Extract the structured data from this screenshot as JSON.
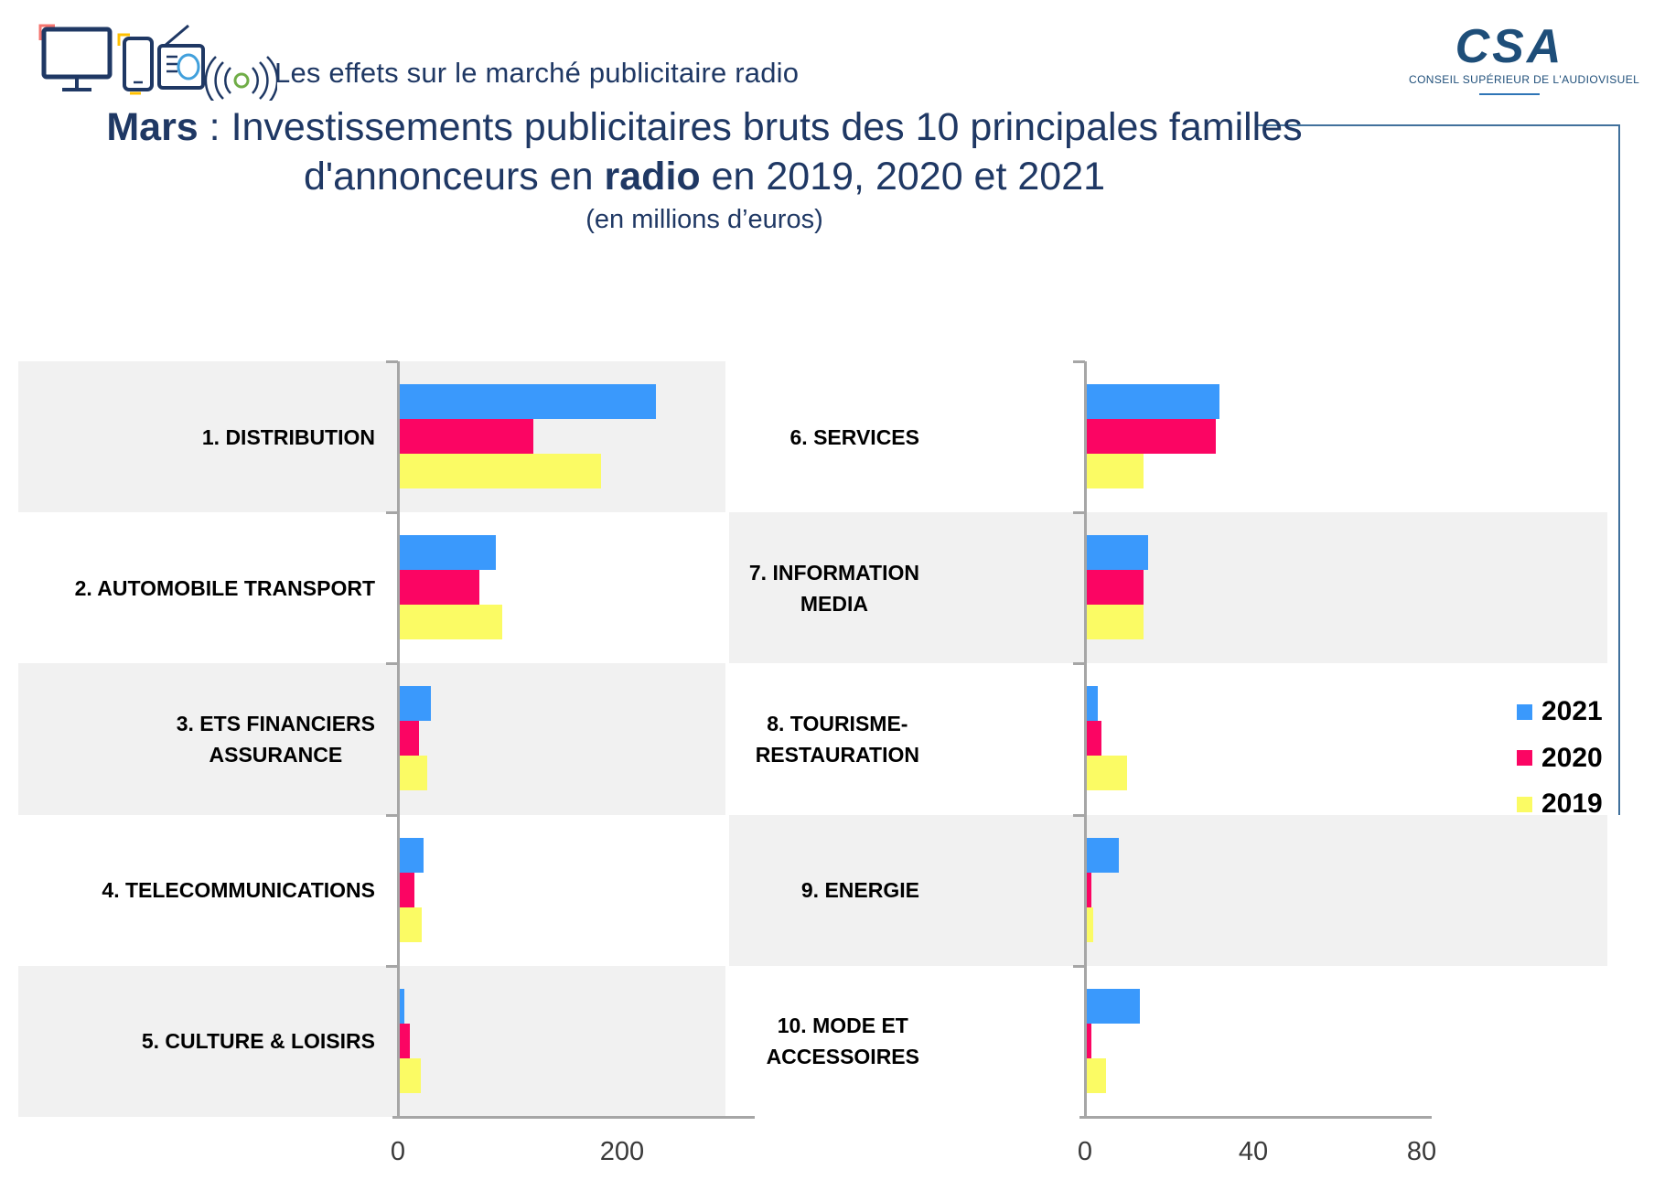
{
  "header": {
    "banner_title": "Les effets sur le marché publicitaire radio",
    "icons": [
      "tv-icon",
      "smartphone-icon",
      "radio-icon",
      "broadcast-waves-icon"
    ],
    "logo": {
      "acronym": "CSA",
      "subtitle": "CONSEIL SUPÉRIEUR DE L'AUDIOVISUEL"
    }
  },
  "title": {
    "emphasis": "Mars",
    "line1_rest": " : Investissements publicitaires bruts des 10 principales familles",
    "line2_before": "d'annonceurs en ",
    "line2_emphasis": "radio",
    "line2_after": " en 2019, 2020 et 2021",
    "subtitle": "(en millions d’euros)"
  },
  "legend": {
    "items": [
      {
        "label": "2021",
        "color": "#3A99FC"
      },
      {
        "label": "2020",
        "color": "#FB0563"
      },
      {
        "label": "2019",
        "color": "#FBFB64"
      }
    ]
  },
  "chart_data": {
    "type": "bar",
    "orientation": "horizontal",
    "unit": "millions d'euros",
    "series_names": [
      "2021",
      "2020",
      "2019"
    ],
    "panels": [
      {
        "side": "left",
        "x_ticks": [
          0,
          200
        ],
        "x_max": 318,
        "categories": [
          {
            "label_lines": [
              "1. DISTRIBUTION"
            ],
            "values": [
              230,
              121,
              181
            ]
          },
          {
            "label_lines": [
              "2. AUTOMOBILE TRANSPORT"
            ],
            "values": [
              87,
              73,
              93
            ]
          },
          {
            "label_lines": [
              "3. ETS FINANCIERS",
              "ASSURANCE"
            ],
            "values": [
              29,
              19,
              26
            ]
          },
          {
            "label_lines": [
              "4. TELECOMMUNICATIONS"
            ],
            "values": [
              23,
              15,
              21
            ]
          },
          {
            "label_lines": [
              "5. CULTURE & LOISIRS"
            ],
            "values": [
              6,
              11,
              20
            ]
          }
        ]
      },
      {
        "side": "right",
        "x_ticks": [
          0,
          40,
          80
        ],
        "x_max": 82,
        "categories": [
          {
            "label_lines": [
              "6. SERVICES"
            ],
            "values": [
              32,
              31,
              14
            ]
          },
          {
            "label_lines": [
              "7. INFORMATION",
              "MEDIA"
            ],
            "values": [
              15,
              14,
              14
            ]
          },
          {
            "label_lines": [
              "8. TOURISME-",
              "RESTAURATION"
            ],
            "values": [
              3,
              4,
              10
            ]
          },
          {
            "label_lines": [
              "9. ENERGIE"
            ],
            "values": [
              8,
              1.5,
              2
            ]
          },
          {
            "label_lines": [
              "10. MODE ET",
              "ACCESSOIRES"
            ],
            "values": [
              13,
              1.5,
              5
            ]
          }
        ]
      }
    ]
  }
}
